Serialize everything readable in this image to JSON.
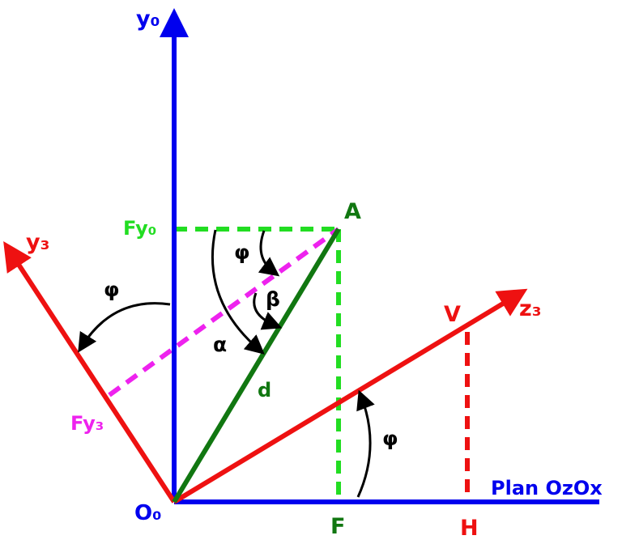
{
  "labels": {
    "y0_axis": "y₀",
    "plane": "Plan OzOx",
    "origin": "O₀",
    "y3_axis": "y₃",
    "z3_axis": "z₃",
    "point_A": "A",
    "point_V": "V",
    "point_F": "F",
    "point_H": "H",
    "Fy0": "Fy₀",
    "Fy3": "Fy₃",
    "d": "d",
    "alpha": "α",
    "beta": "β",
    "phi_top": "φ",
    "phi_left": "φ",
    "phi_bottom": "φ"
  },
  "colors": {
    "blue": "#0000ee",
    "red": "#ee1111",
    "green": "#117711",
    "bright_green": "#22dd22",
    "magenta": "#ee22ee",
    "black": "#000000"
  }
}
